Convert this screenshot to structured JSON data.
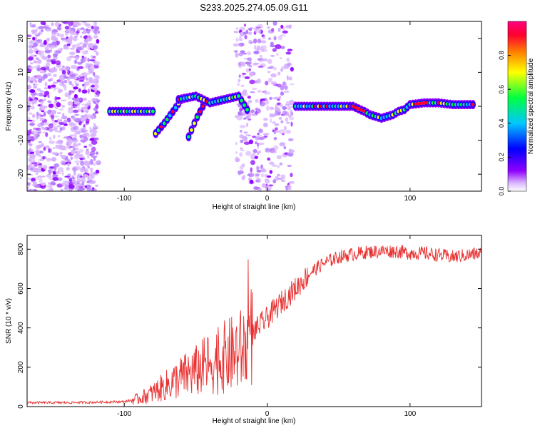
{
  "title": "S233.2025.274.05.09.G11",
  "chart_data": [
    {
      "type": "heatmap",
      "xlabel": "Height of straight line (km)",
      "ylabel": "Frequency (Hz)",
      "xlim": [
        -168,
        150
      ],
      "ylim": [
        -25,
        25
      ],
      "xticks": [
        -100,
        0,
        100
      ],
      "yticks": [
        -20,
        -10,
        0,
        10,
        20
      ],
      "colorbar": {
        "label": "Normalized spectral amplitude",
        "range": [
          0,
          1
        ],
        "ticks": [
          0.0,
          0.2,
          0.4,
          0.6,
          0.8
        ],
        "colors": [
          "#ffffff",
          "#d9b3ff",
          "#8f00ff",
          "#0000ff",
          "#00c8ff",
          "#00ff40",
          "#ffff00",
          "#ff8000",
          "#ff0030",
          "#ff0080"
        ]
      },
      "ridge": {
        "x": [
          -110,
          -100,
          -90,
          -80,
          20,
          40,
          60,
          68,
          72,
          76,
          80,
          84,
          88,
          92,
          96,
          100,
          110,
          120,
          130,
          145
        ],
        "y": [
          -1.5,
          -1.5,
          -1.5,
          -1.5,
          0,
          0,
          0,
          -1.5,
          -2.5,
          -3,
          -3.5,
          -3,
          -2.5,
          -1.5,
          -1,
          0.5,
          1,
          1,
          0.5,
          0.5
        ]
      },
      "branches": [
        {
          "x": [
            -78,
            -72,
            -65,
            -60
          ],
          "y": [
            -8,
            -5,
            -1,
            2
          ]
        },
        {
          "x": [
            -55,
            -50,
            -45
          ],
          "y": [
            -9,
            -4,
            0
          ]
        },
        {
          "x": [
            -62,
            -50,
            -40,
            -30,
            -20,
            -14
          ],
          "y": [
            2,
            3,
            1,
            2,
            3,
            -1
          ]
        }
      ]
    },
    {
      "type": "line",
      "xlabel": "Height of straight line (km)",
      "ylabel": "SNR (10 * v/v)",
      "xlim": [
        -168,
        150
      ],
      "ylim": [
        0,
        870
      ],
      "xticks": [
        -100,
        0,
        100
      ],
      "yticks": [
        0,
        200,
        400,
        600,
        800
      ],
      "series": [
        {
          "name": "SNR",
          "color": "#e83030",
          "x": [
            -168,
            -140,
            -120,
            -100,
            -90,
            -80,
            -70,
            -60,
            -50,
            -40,
            -30,
            -20,
            -15,
            -10,
            0,
            10,
            20,
            30,
            40,
            50,
            60,
            70,
            80,
            90,
            100,
            110,
            120,
            130,
            140,
            150
          ],
          "y": [
            20,
            20,
            22,
            25,
            40,
            70,
            110,
            150,
            180,
            220,
            250,
            280,
            300,
            380,
            450,
            530,
            600,
            680,
            730,
            760,
            775,
            785,
            790,
            790,
            780,
            780,
            770,
            760,
            770,
            780
          ]
        }
      ]
    }
  ]
}
